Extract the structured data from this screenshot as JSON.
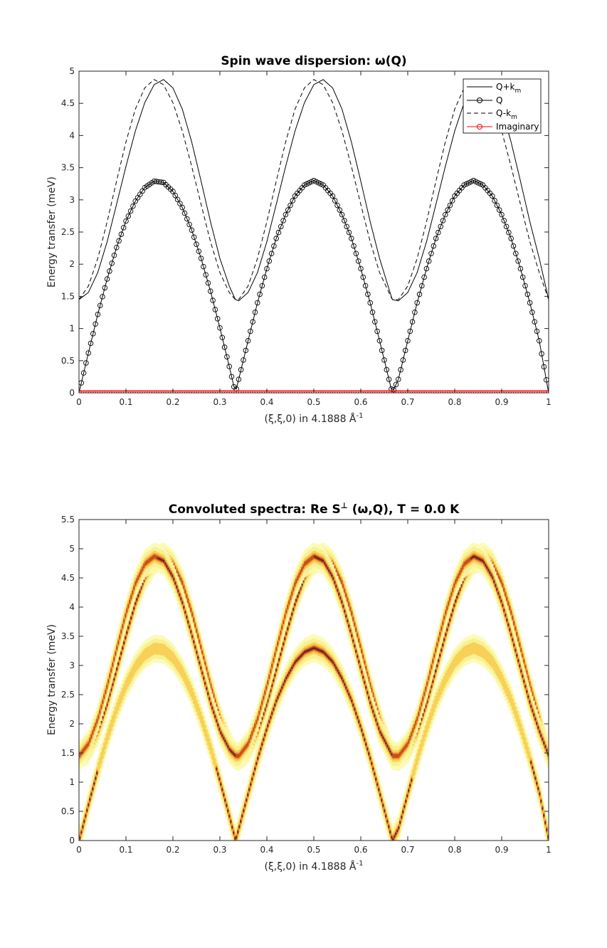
{
  "chart_data": [
    {
      "type": "line",
      "title": "Spin wave dispersion: ω(Q)",
      "xlabel": "(ξ,ξ,0) in 4.1888 Å",
      "xlabel_sup": "-1",
      "ylabel": "Energy transfer (meV)",
      "xlim": [
        0,
        1
      ],
      "ylim": [
        0,
        5
      ],
      "xticks": [
        "0",
        "0.1",
        "0.2",
        "0.3",
        "0.4",
        "0.5",
        "0.6",
        "0.7",
        "0.8",
        "0.9",
        "1"
      ],
      "yticks": [
        "0",
        "0.5",
        "1",
        "1.5",
        "2",
        "2.5",
        "3",
        "3.5",
        "4",
        "4.5",
        "5"
      ],
      "grid": false,
      "legend_position": "top-right",
      "x": [
        0,
        0.02,
        0.04,
        0.06,
        0.08,
        0.1,
        0.12,
        0.14,
        0.16,
        0.18,
        0.2,
        0.22,
        0.24,
        0.26,
        0.28,
        0.3,
        0.32,
        0.333,
        0.34,
        0.36,
        0.38,
        0.4,
        0.42,
        0.44,
        0.46,
        0.48,
        0.5,
        0.52,
        0.54,
        0.56,
        0.58,
        0.6,
        0.62,
        0.64,
        0.667,
        0.68,
        0.7,
        0.72,
        0.74,
        0.76,
        0.78,
        0.8,
        0.82,
        0.84,
        0.86,
        0.88,
        0.9,
        0.92,
        0.94,
        0.96,
        0.98,
        1
      ],
      "series": [
        {
          "name": "Q+k",
          "name_sub": "m",
          "style": "solid",
          "values": [
            1.45,
            1.56,
            1.87,
            2.35,
            2.93,
            3.52,
            4.07,
            4.51,
            4.79,
            4.87,
            4.74,
            4.41,
            3.9,
            3.29,
            2.66,
            2.09,
            1.66,
            1.45,
            1.43,
            1.56,
            1.87,
            2.35,
            2.93,
            3.52,
            4.07,
            4.51,
            4.79,
            4.87,
            4.74,
            4.41,
            3.9,
            3.29,
            2.66,
            2.09,
            1.45,
            1.43,
            1.56,
            1.87,
            2.35,
            2.93,
            3.52,
            4.07,
            4.51,
            4.79,
            4.87,
            4.74,
            4.41,
            3.9,
            3.29,
            2.66,
            2.09,
            1.45
          ]
        },
        {
          "name": "Q",
          "style": "circle-markers",
          "values": [
            0,
            0.62,
            1.22,
            1.77,
            2.26,
            2.67,
            2.98,
            3.19,
            3.29,
            3.27,
            3.13,
            2.88,
            2.53,
            2.09,
            1.58,
            1.01,
            0.41,
            0,
            0.21,
            0.81,
            1.4,
            1.93,
            2.4,
            2.77,
            3.06,
            3.23,
            3.3,
            3.23,
            3.06,
            2.77,
            2.4,
            1.93,
            1.4,
            0.81,
            0,
            0.21,
            0.81,
            1.4,
            1.93,
            2.4,
            2.77,
            3.06,
            3.23,
            3.3,
            3.23,
            3.06,
            2.77,
            2.4,
            1.93,
            1.4,
            0.81,
            0
          ]
        },
        {
          "name": "Q-k",
          "name_sub": "m",
          "style": "dashed",
          "values": [
            1.45,
            1.66,
            2.09,
            2.66,
            3.29,
            3.9,
            4.41,
            4.74,
            4.87,
            4.79,
            4.51,
            4.07,
            3.52,
            2.93,
            2.35,
            1.87,
            1.56,
            1.45,
            1.45,
            1.66,
            2.09,
            2.66,
            3.29,
            3.9,
            4.41,
            4.74,
            4.87,
            4.79,
            4.51,
            4.07,
            3.52,
            2.93,
            2.35,
            1.87,
            1.45,
            1.45,
            1.66,
            2.09,
            2.66,
            3.29,
            3.9,
            4.41,
            4.74,
            4.87,
            4.79,
            4.51,
            4.07,
            3.52,
            2.93,
            2.35,
            1.87,
            1.45
          ]
        },
        {
          "name": "Imaginary",
          "style": "red-circle-markers",
          "values": [
            0,
            0,
            0,
            0,
            0,
            0,
            0,
            0,
            0,
            0,
            0,
            0,
            0,
            0,
            0,
            0,
            0,
            0,
            0,
            0,
            0,
            0,
            0,
            0,
            0,
            0,
            0,
            0,
            0,
            0,
            0,
            0,
            0,
            0,
            0,
            0,
            0,
            0,
            0,
            0,
            0,
            0,
            0,
            0,
            0,
            0,
            0,
            0,
            0,
            0,
            0,
            0
          ]
        }
      ]
    },
    {
      "type": "heatmap",
      "title": "Convoluted spectra: Re S",
      "title_sup": "⊥",
      "title_rest": " (ω,Q), T =   0.0 K",
      "xlabel": "(ξ,ξ,0) in 4.1888 Å",
      "xlabel_sup": "-1",
      "ylabel": "Energy transfer (meV)",
      "xlim": [
        0,
        1
      ],
      "ylim": [
        0,
        5.5
      ],
      "xticks": [
        "0",
        "0.1",
        "0.2",
        "0.3",
        "0.4",
        "0.5",
        "0.6",
        "0.7",
        "0.8",
        "0.9",
        "1"
      ],
      "yticks": [
        "0",
        "0.5",
        "1",
        "1.5",
        "2",
        "2.5",
        "3",
        "3.5",
        "4",
        "4.5",
        "5",
        "5.5"
      ],
      "colormap": "hot-inverted (white → yellow → orange → red → dark purple)",
      "bands": [
        {
          "branch": "Q",
          "center_max_meV": 3.3,
          "min_meV": 0
        },
        {
          "branch": "Q+k_m",
          "center_max_meV": 4.87,
          "min_meV": 1.43
        },
        {
          "branch": "Q-k_m",
          "center_max_meV": 4.87,
          "min_meV": 1.45
        }
      ]
    }
  ],
  "colors": {
    "axis": "#262626",
    "line": "#000000",
    "imaginary": "#ff0000",
    "heat_low": "#fafa96",
    "heat_mid": "#f08c1e",
    "heat_high": "#1e0a3c"
  }
}
